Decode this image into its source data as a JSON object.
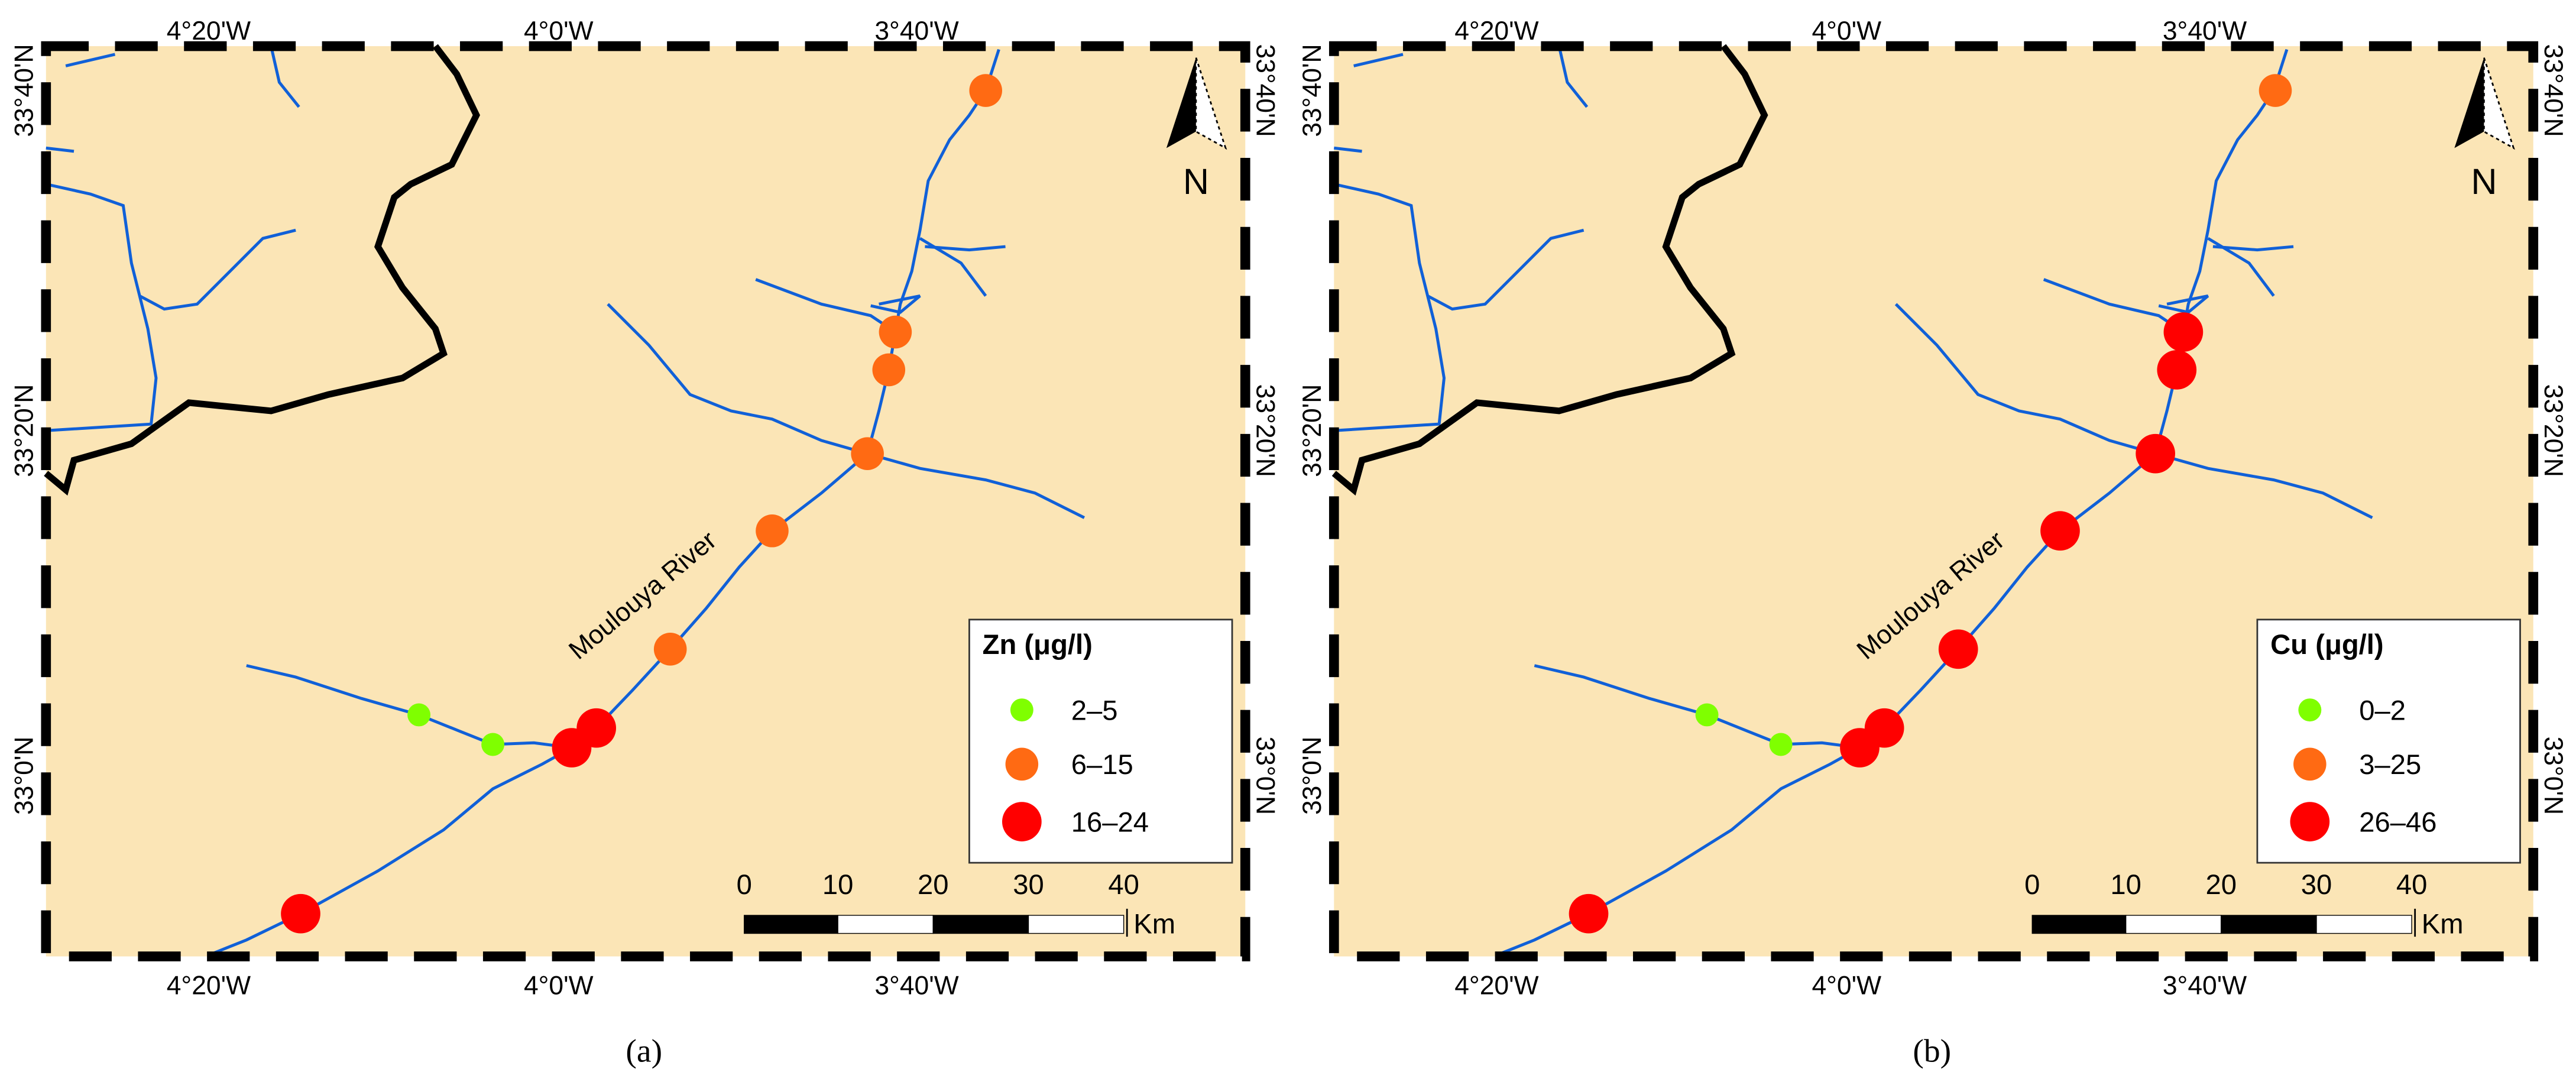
{
  "panels": [
    {
      "caption": "(a)",
      "top_labels": [
        "4°20'W",
        "4°0'W",
        "3°40'W"
      ],
      "bottom_labels": [
        "4°20'W",
        "4°0'W",
        "3°40'W"
      ],
      "left_labels": [
        "33°40'N",
        "33°20'N",
        "33°0'N"
      ],
      "right_labels": [
        "33°40'N",
        "33°20'N",
        "33°0'N"
      ],
      "river_label": "Moulouya River",
      "north": "N",
      "legend": {
        "title": "Zn (μg/l)",
        "items": [
          "2–5",
          "6–15",
          "16–24"
        ]
      },
      "scale": {
        "ticks": [
          0,
          10,
          20,
          30,
          40
        ],
        "unit": "Km"
      }
    },
    {
      "caption": "(b)",
      "top_labels": [
        "4°20'W",
        "4°0'W",
        "3°40'W"
      ],
      "bottom_labels": [
        "4°20'W",
        "4°0'W",
        "3°40'W"
      ],
      "left_labels": [
        "33°40'N",
        "33°20'N",
        "33°0'N"
      ],
      "right_labels": [
        "33°40'N",
        "33°20'N",
        "33°0'N"
      ],
      "river_label": "Moulouya River",
      "north": "N",
      "legend": {
        "title": "Cu (μg/l)",
        "items": [
          "0–2",
          "3–25",
          "26–46"
        ]
      },
      "scale": {
        "ticks": [
          0,
          10,
          20,
          30,
          40
        ],
        "unit": "Km"
      }
    }
  ]
}
